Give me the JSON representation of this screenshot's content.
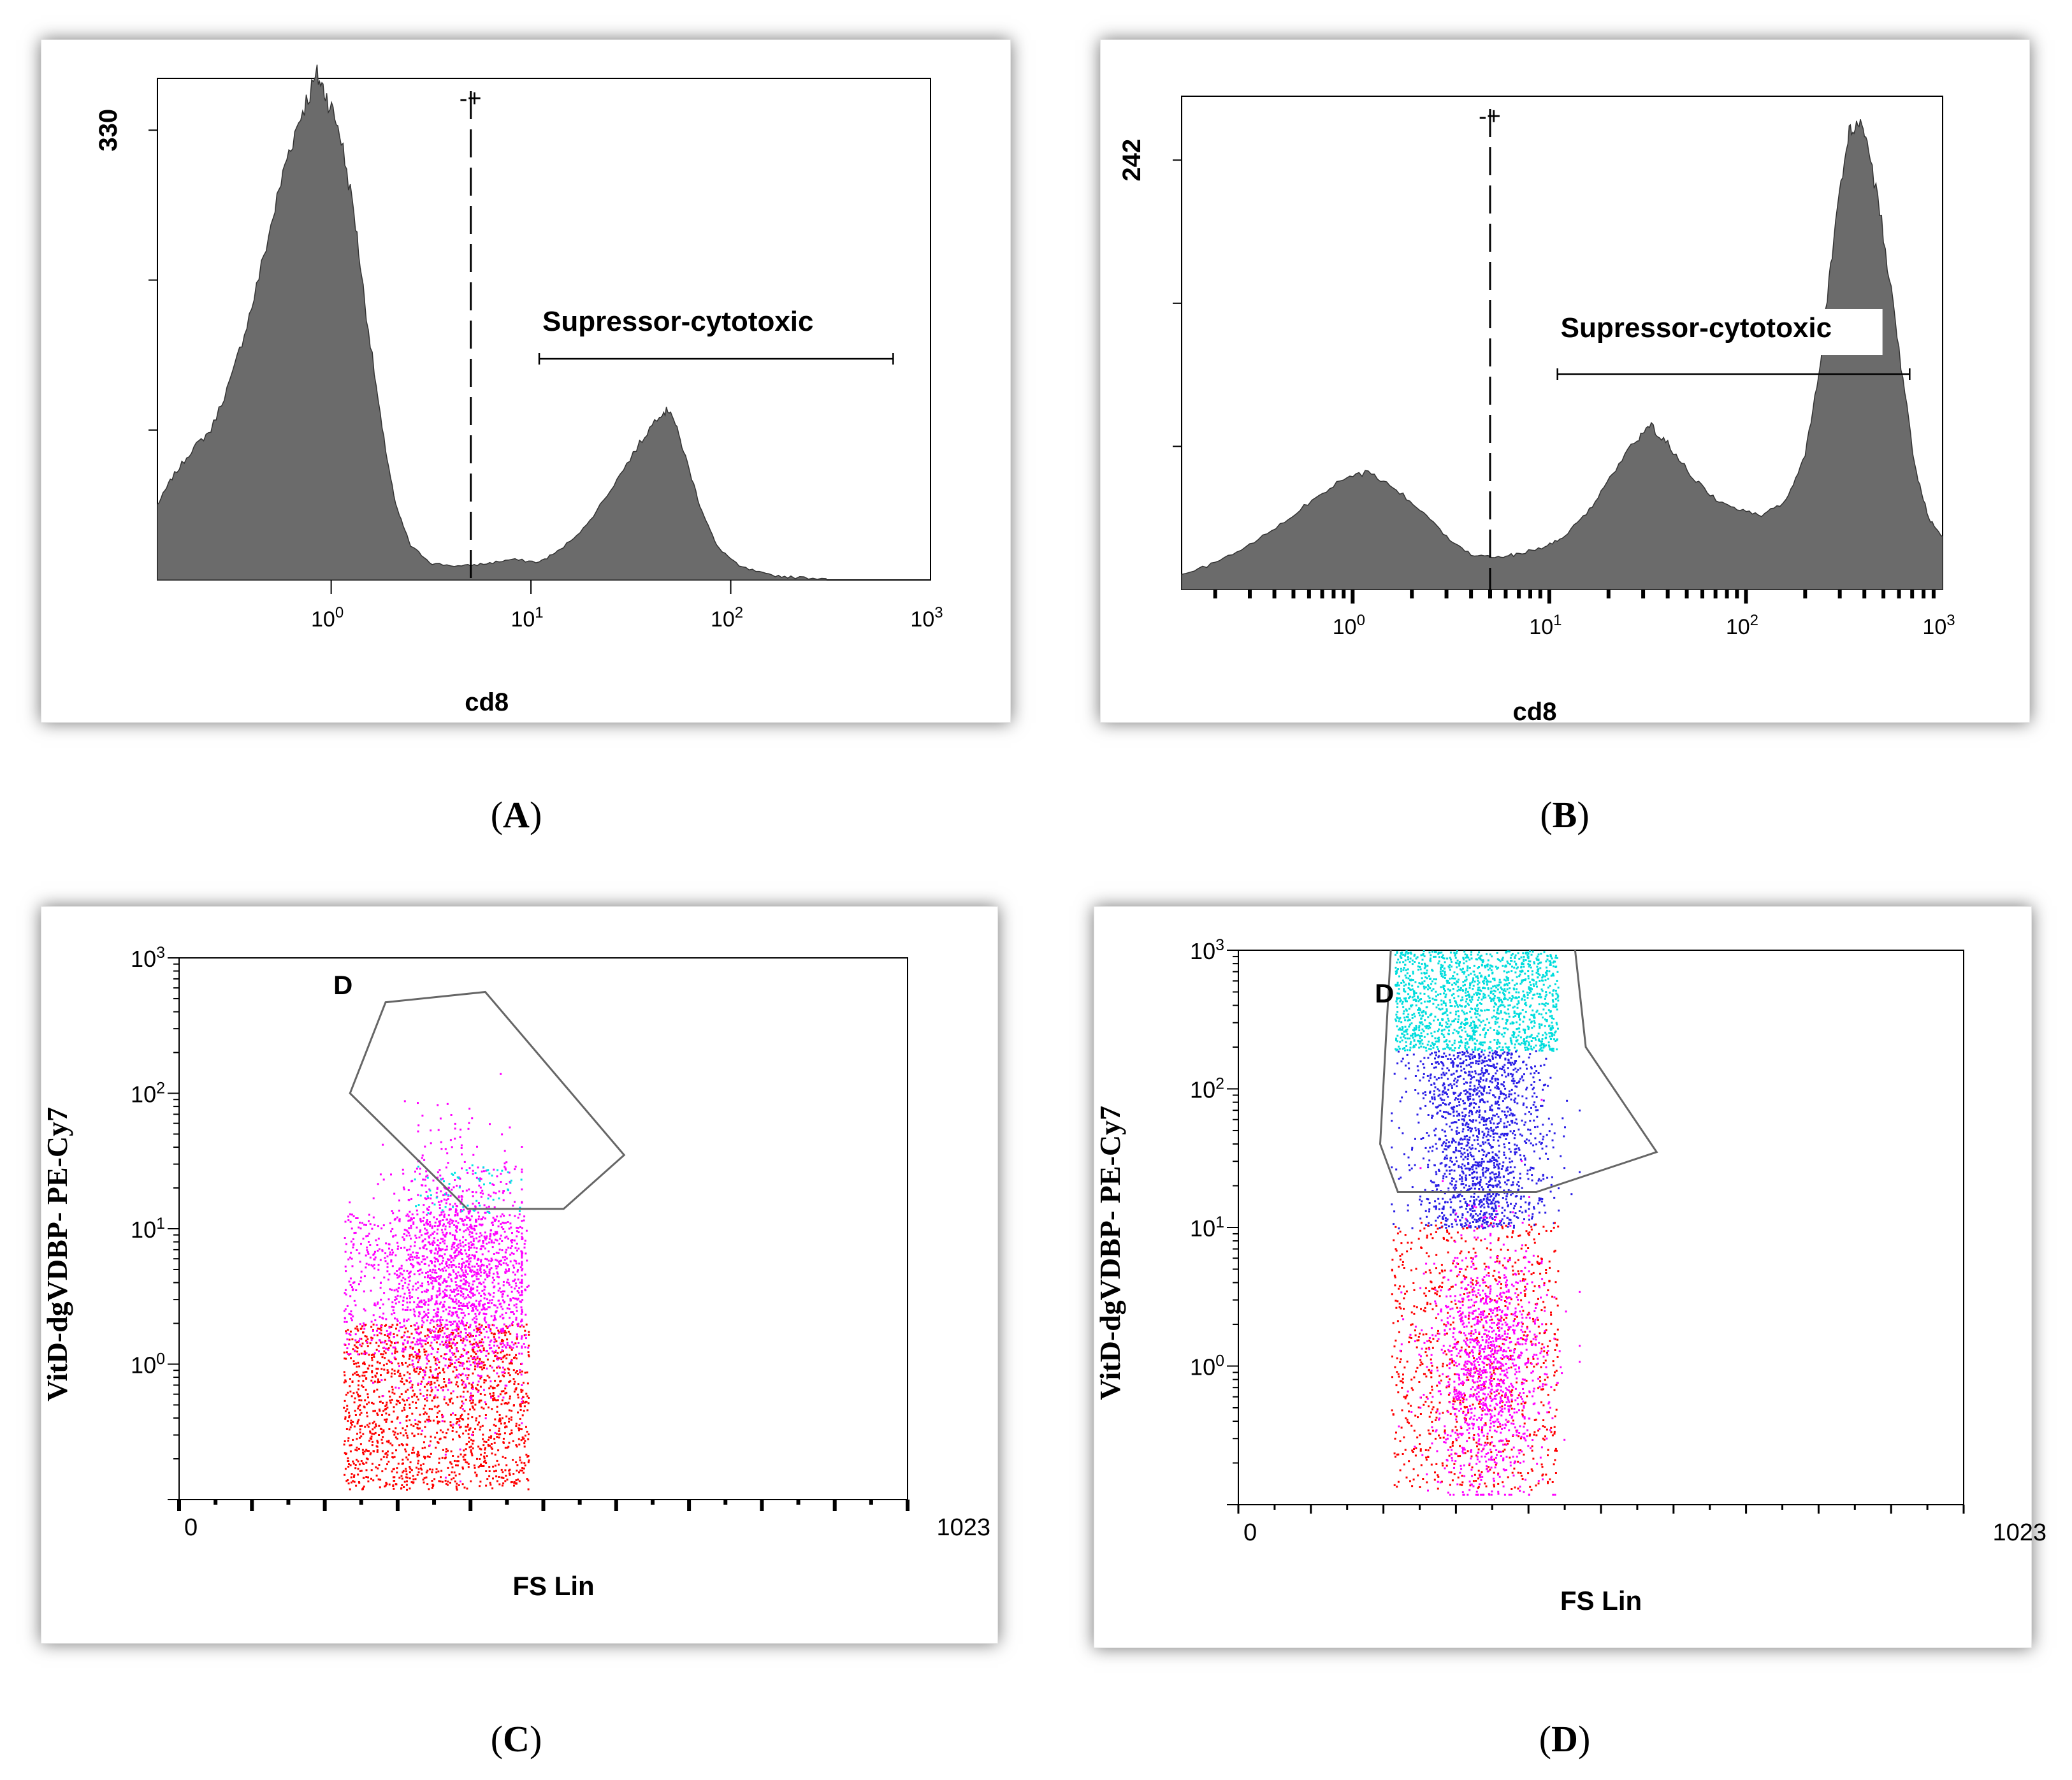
{
  "chart_data": [
    {
      "panel": "A",
      "type": "histogram",
      "xlabel": "cd8",
      "x_scale": "log",
      "xlim": [
        0.135,
        1000
      ],
      "x_ticks": [
        {
          "base": "10",
          "exp": "0",
          "value": 1
        },
        {
          "base": "10",
          "exp": "1",
          "value": 10
        },
        {
          "base": "10",
          "exp": "2",
          "value": 100
        },
        {
          "base": "10",
          "exp": "3",
          "value": 1000
        }
      ],
      "ylim": [
        0,
        368
      ],
      "y_tick_label": "330",
      "y_tick_value": 330,
      "gate_x": 5.0,
      "region": {
        "label": "Supressor-cytotoxic",
        "x_start": 11,
        "x_end": 650
      },
      "histogram": [
        [
          0.135,
          55
        ],
        [
          0.16,
          75
        ],
        [
          0.2,
          95
        ],
        [
          0.25,
          110
        ],
        [
          0.32,
          150
        ],
        [
          0.4,
          200
        ],
        [
          0.5,
          260
        ],
        [
          0.6,
          310
        ],
        [
          0.72,
          345
        ],
        [
          0.85,
          370
        ],
        [
          0.95,
          355
        ],
        [
          1.1,
          330
        ],
        [
          1.3,
          270
        ],
        [
          1.5,
          195
        ],
        [
          1.8,
          110
        ],
        [
          2.1,
          55
        ],
        [
          2.5,
          25
        ],
        [
          3.2,
          12
        ],
        [
          4.5,
          10
        ],
        [
          6,
          12
        ],
        [
          8,
          15
        ],
        [
          11,
          13
        ],
        [
          14,
          22
        ],
        [
          19,
          40
        ],
        [
          26,
          70
        ],
        [
          35,
          100
        ],
        [
          44,
          122
        ],
        [
          50,
          125
        ],
        [
          58,
          95
        ],
        [
          70,
          55
        ],
        [
          85,
          25
        ],
        [
          110,
          10
        ],
        [
          150,
          4
        ],
        [
          200,
          2
        ],
        [
          300,
          1
        ]
      ]
    },
    {
      "panel": "B",
      "type": "histogram",
      "xlabel": "cd8",
      "x_scale": "log",
      "xlim": [
        0.135,
        1000
      ],
      "x_ticks": [
        {
          "base": "10",
          "exp": "0",
          "value": 1
        },
        {
          "base": "10",
          "exp": "1",
          "value": 10
        },
        {
          "base": "10",
          "exp": "2",
          "value": 100
        },
        {
          "base": "10",
          "exp": "3",
          "value": 1000
        }
      ],
      "ylim": [
        0,
        278
      ],
      "y_tick_label": "242",
      "y_tick_value": 242,
      "gate_x": 5.0,
      "region": {
        "label": "Supressor-cytotoxic",
        "x_start": 11,
        "x_end": 680
      },
      "histogram": [
        [
          0.135,
          8
        ],
        [
          0.2,
          15
        ],
        [
          0.3,
          25
        ],
        [
          0.45,
          38
        ],
        [
          0.65,
          52
        ],
        [
          0.9,
          62
        ],
        [
          1.2,
          66
        ],
        [
          1.6,
          58
        ],
        [
          2.2,
          45
        ],
        [
          3,
          30
        ],
        [
          4,
          20
        ],
        [
          5.5,
          18
        ],
        [
          7,
          20
        ],
        [
          9.5,
          24
        ],
        [
          12,
          30
        ],
        [
          16,
          45
        ],
        [
          21,
          65
        ],
        [
          28,
          85
        ],
        [
          33,
          92
        ],
        [
          40,
          82
        ],
        [
          52,
          65
        ],
        [
          68,
          52
        ],
        [
          90,
          45
        ],
        [
          120,
          42
        ],
        [
          160,
          50
        ],
        [
          200,
          75
        ],
        [
          240,
          130
        ],
        [
          280,
          200
        ],
        [
          330,
          255
        ],
        [
          370,
          265
        ],
        [
          420,
          250
        ],
        [
          500,
          200
        ],
        [
          600,
          135
        ],
        [
          720,
          70
        ],
        [
          850,
          40
        ],
        [
          1000,
          30
        ]
      ]
    },
    {
      "panel": "C",
      "type": "scatter",
      "xlabel": "FS Lin",
      "ylabel": "VitD-dgVDBP- PE-Cy7",
      "xlim": [
        0,
        1023
      ],
      "x_tick_labels": [
        "0",
        "1023"
      ],
      "y_scale": "log",
      "ylim": [
        0.1,
        1000
      ],
      "y_ticks": [
        {
          "base": "10",
          "exp": "0",
          "value": 1
        },
        {
          "base": "10",
          "exp": "1",
          "value": 10
        },
        {
          "base": "10",
          "exp": "2",
          "value": 100
        },
        {
          "base": "10",
          "exp": "3",
          "value": 1000
        }
      ],
      "gate": {
        "label": "D",
        "polygon": [
          [
            240,
            100
          ],
          [
            290,
            470
          ],
          [
            430,
            560
          ],
          [
            625,
            35
          ],
          [
            540,
            14
          ],
          [
            405,
            14
          ]
        ]
      },
      "clusters": [
        {
          "name": "red",
          "color": "#ff0000",
          "count": 1500,
          "x_range": [
            230,
            490
          ],
          "y_range": [
            0.12,
            2.0
          ]
        },
        {
          "name": "magenta-spread",
          "color": "#ff00ff",
          "count": 700,
          "x_range": [
            230,
            490
          ],
          "y_range": [
            1.2,
            13
          ]
        },
        {
          "name": "magenta-core",
          "color": "#ff00ff",
          "count": 1400,
          "x_center": [
            390,
            50
          ],
          "y_center": [
            4.6,
            0.45
          ]
        },
        {
          "name": "cyan",
          "color": "#00e5e5",
          "count": 60,
          "x_range": [
            330,
            480
          ],
          "y_range": [
            13,
            30
          ]
        }
      ]
    },
    {
      "panel": "D",
      "type": "scatter",
      "xlabel": "FS Lin",
      "ylabel": "VitD-dgVDBP- PE-Cy7",
      "xlim": [
        0,
        1023
      ],
      "x_tick_labels": [
        "0",
        "1023"
      ],
      "y_scale": "log",
      "ylim": [
        0.1,
        1000
      ],
      "y_ticks": [
        {
          "base": "10",
          "exp": "0",
          "value": 1
        },
        {
          "base": "10",
          "exp": "1",
          "value": 10
        },
        {
          "base": "10",
          "exp": "2",
          "value": 100
        },
        {
          "base": "10",
          "exp": "3",
          "value": 1000
        }
      ],
      "gate": {
        "label": "D",
        "polygon": [
          [
            215,
            1000
          ],
          [
            200,
            40
          ],
          [
            225,
            18
          ],
          [
            420,
            18
          ],
          [
            590,
            35
          ],
          [
            490,
            200
          ],
          [
            475,
            1000
          ]
        ]
      },
      "clusters": [
        {
          "name": "cyan",
          "color": "#00dddd",
          "count": 1500,
          "x_range": [
            220,
            450
          ],
          "y_range": [
            190,
            1000
          ]
        },
        {
          "name": "blue",
          "color": "#2a1ee6",
          "count": 1600,
          "x_center": [
            340,
            45
          ],
          "y_range": [
            10,
            190
          ]
        },
        {
          "name": "red",
          "color": "#ff0000",
          "count": 900,
          "x_range": [
            215,
            450
          ],
          "y_range": [
            0.13,
            11
          ]
        },
        {
          "name": "magenta",
          "color": "#ff00ff",
          "count": 1300,
          "x_center": [
            350,
            40
          ],
          "y_center": [
            1.0,
            0.45
          ]
        }
      ]
    }
  ],
  "labels": [
    {
      "open": "(",
      "letter": "A",
      "close": ")"
    },
    {
      "open": "(",
      "letter": "B",
      "close": ")"
    },
    {
      "open": "(",
      "letter": "C",
      "close": ")"
    },
    {
      "open": "(",
      "letter": "D",
      "close": ")"
    }
  ]
}
